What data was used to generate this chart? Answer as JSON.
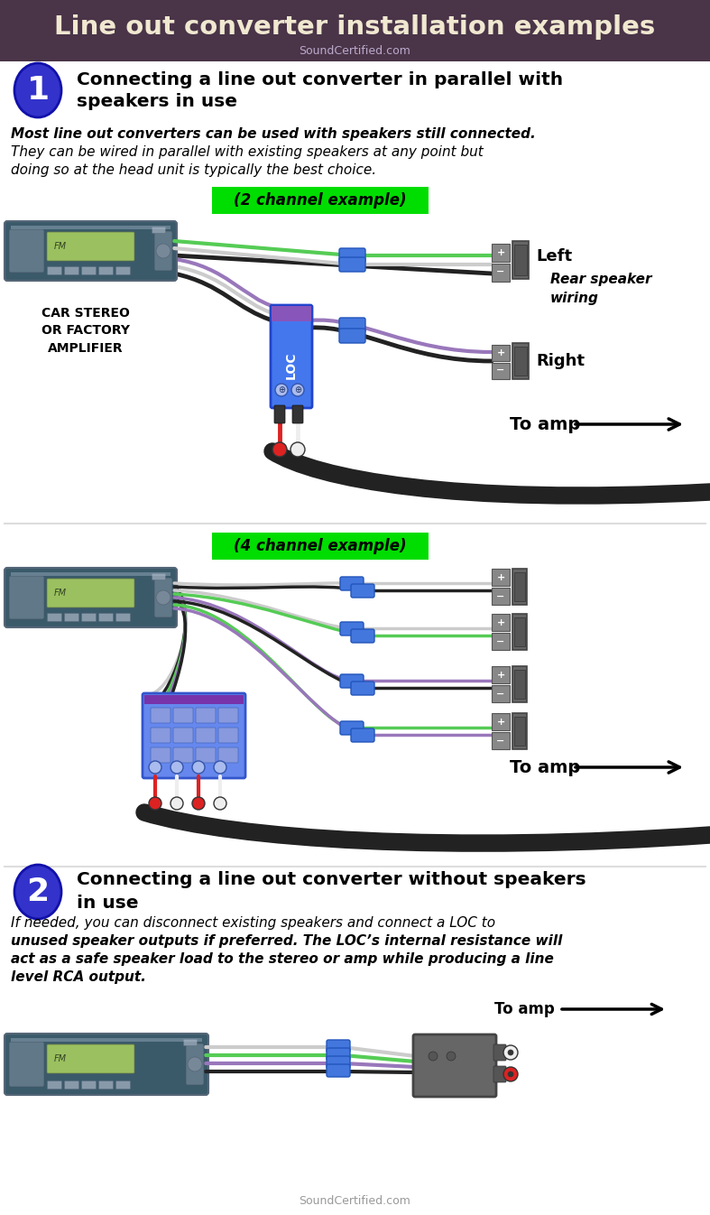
{
  "title": "Line out converter installation examples",
  "subtitle": "SoundCertified.com",
  "title_bg": "#4a3448",
  "title_color": "#f0e8d0",
  "subtitle_color": "#ccbbdd",
  "section1_title": "Connecting a line out converter in parallel with\nspeakers in use",
  "section1_body_line1": "Most line out converters can be used with speakers still connected.",
  "section1_body_line2": "They can be wired in parallel with existing speakers at any point but",
  "section1_body_line3": "doing so at the head unit is typically the best choice.",
  "section2_title": "Connecting a line out converter without speakers\nin use",
  "section2_body_line1": "If needed, you can disconnect existing speakers and connect a LOC to",
  "section2_body_line2": "unused speaker outputs if preferred. The LOC’s internal resistance will",
  "section2_body_line3": "act as a safe speaker load to the stereo or amp while producing a line",
  "section2_body_line4": "level RCA output.",
  "label_2ch": "(2 channel example)",
  "label_4ch": "(4 channel example)",
  "bg_color": "#ffffff",
  "green_bg": "#00dd00",
  "green_fg": "#000000",
  "car_stereo_label": "CAR STEREO\nOR FACTORY\nAMPLIFIER",
  "left_label": "Left",
  "right_label": "Right",
  "rear_speaker_label": "Rear speaker\nwiring",
  "to_amp_label": "To amp",
  "footer": "SoundCertified.com",
  "wire_green": "#55cc55",
  "wire_white": "#cccccc",
  "wire_purple": "#9977bb",
  "wire_black": "#222222",
  "connector_blue": "#4477dd",
  "loc_blue": "#4477ee",
  "loc_purple_top": "#8855bb"
}
